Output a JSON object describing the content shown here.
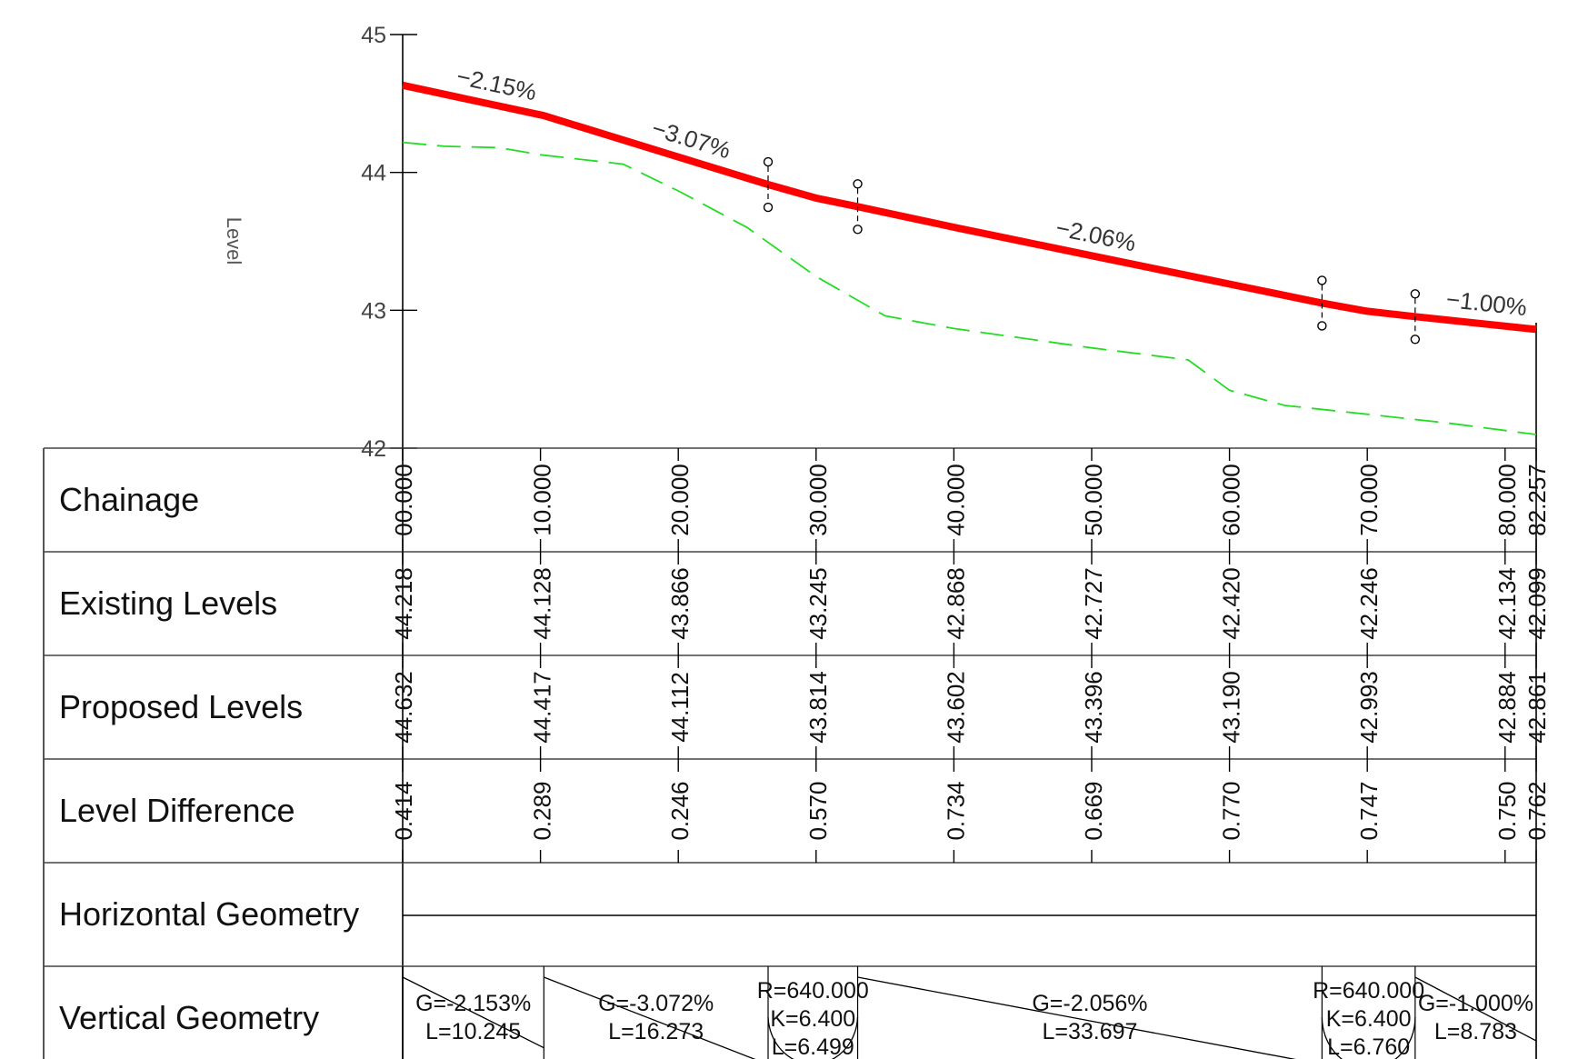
{
  "profile": {
    "y_axis_label": "Level",
    "y_ticks": [
      "45",
      "44",
      "43",
      "42"
    ],
    "grades": [
      {
        "text": "−2.15%",
        "chainage": 6.5
      },
      {
        "text": "−3.07%",
        "chainage": 20.5
      },
      {
        "text": "−2.06%",
        "chainage": 50.0
      },
      {
        "text": "−1.00%",
        "chainage": 78.5
      }
    ]
  },
  "chart_data": {
    "type": "line",
    "x": [
      0,
      10.245,
      26.518,
      33.017,
      66.714,
      73.474,
      82.257
    ],
    "ylim": [
      42,
      45
    ],
    "xlim": [
      0,
      82.257
    ],
    "series": [
      {
        "name": "Proposed Levels",
        "color": "#ff0000",
        "style": "solid",
        "x": [
          0,
          10.245,
          20,
          26.518,
          30,
          33.017,
          40,
          50,
          60,
          66.714,
          70,
          73.474,
          82.257
        ],
        "y": [
          44.632,
          44.412,
          44.112,
          43.912,
          43.814,
          43.752,
          43.602,
          43.396,
          43.19,
          43.052,
          42.993,
          42.954,
          42.861
        ]
      },
      {
        "name": "Existing Levels",
        "color": "#22dd22",
        "style": "dashed",
        "x": [
          0,
          3,
          7,
          10,
          16,
          20,
          25,
          30,
          35,
          40,
          50,
          57,
          60,
          64,
          70,
          76,
          82.257
        ],
        "y": [
          44.218,
          44.19,
          44.18,
          44.128,
          44.06,
          43.866,
          43.6,
          43.245,
          42.96,
          42.868,
          42.727,
          42.64,
          42.42,
          42.31,
          42.246,
          42.18,
          42.099
        ]
      }
    ]
  },
  "vertical_curves": [
    {
      "start": 26.518,
      "end": 33.017,
      "pvi": 30.0
    },
    {
      "start": 66.714,
      "end": 73.474,
      "pvi": 70.0
    }
  ],
  "band": {
    "row_labels": [
      "Chainage",
      "Existing Levels",
      "Proposed Levels",
      "Level Difference",
      "Horizontal Geometry",
      "Vertical Geometry"
    ],
    "stations": [
      0,
      10,
      20,
      30,
      40,
      50,
      60,
      70,
      80,
      82.257
    ],
    "chainage": [
      "00.000",
      "10.000",
      "20.000",
      "30.000",
      "40.000",
      "50.000",
      "60.000",
      "70.000",
      "80.000",
      "82.257"
    ],
    "existing": [
      "44.218",
      "44.128",
      "43.866",
      "43.245",
      "42.868",
      "42.727",
      "42.420",
      "42.246",
      "42.134",
      "42.099"
    ],
    "proposed": [
      "44.632",
      "44.417",
      "44.112",
      "43.814",
      "43.602",
      "43.396",
      "43.190",
      "42.993",
      "42.884",
      "42.861"
    ],
    "difference": [
      "0.414",
      "0.289",
      "0.246",
      "0.570",
      "0.734",
      "0.669",
      "0.770",
      "0.747",
      "0.750",
      "0.762"
    ],
    "vertical_geometry": [
      {
        "kind": "grade",
        "start": 0,
        "end": 10.245,
        "lines": [
          "G=-2.153%",
          "L=10.245"
        ]
      },
      {
        "kind": "grade",
        "start": 10.245,
        "end": 26.518,
        "lines": [
          "G=-3.072%",
          "L=16.273"
        ]
      },
      {
        "kind": "curve",
        "start": 26.518,
        "end": 33.017,
        "lines": [
          "R=640.000",
          "K=6.400",
          "L=6.499"
        ]
      },
      {
        "kind": "grade",
        "start": 33.017,
        "end": 66.714,
        "lines": [
          "G=-2.056%",
          "L=33.697"
        ]
      },
      {
        "kind": "curve",
        "start": 66.714,
        "end": 73.474,
        "lines": [
          "R=640.000",
          "K=6.400",
          "L=6.760"
        ]
      },
      {
        "kind": "grade",
        "start": 73.474,
        "end": 82.257,
        "lines": [
          "G=-1.000%",
          "L=8.783"
        ]
      }
    ]
  }
}
